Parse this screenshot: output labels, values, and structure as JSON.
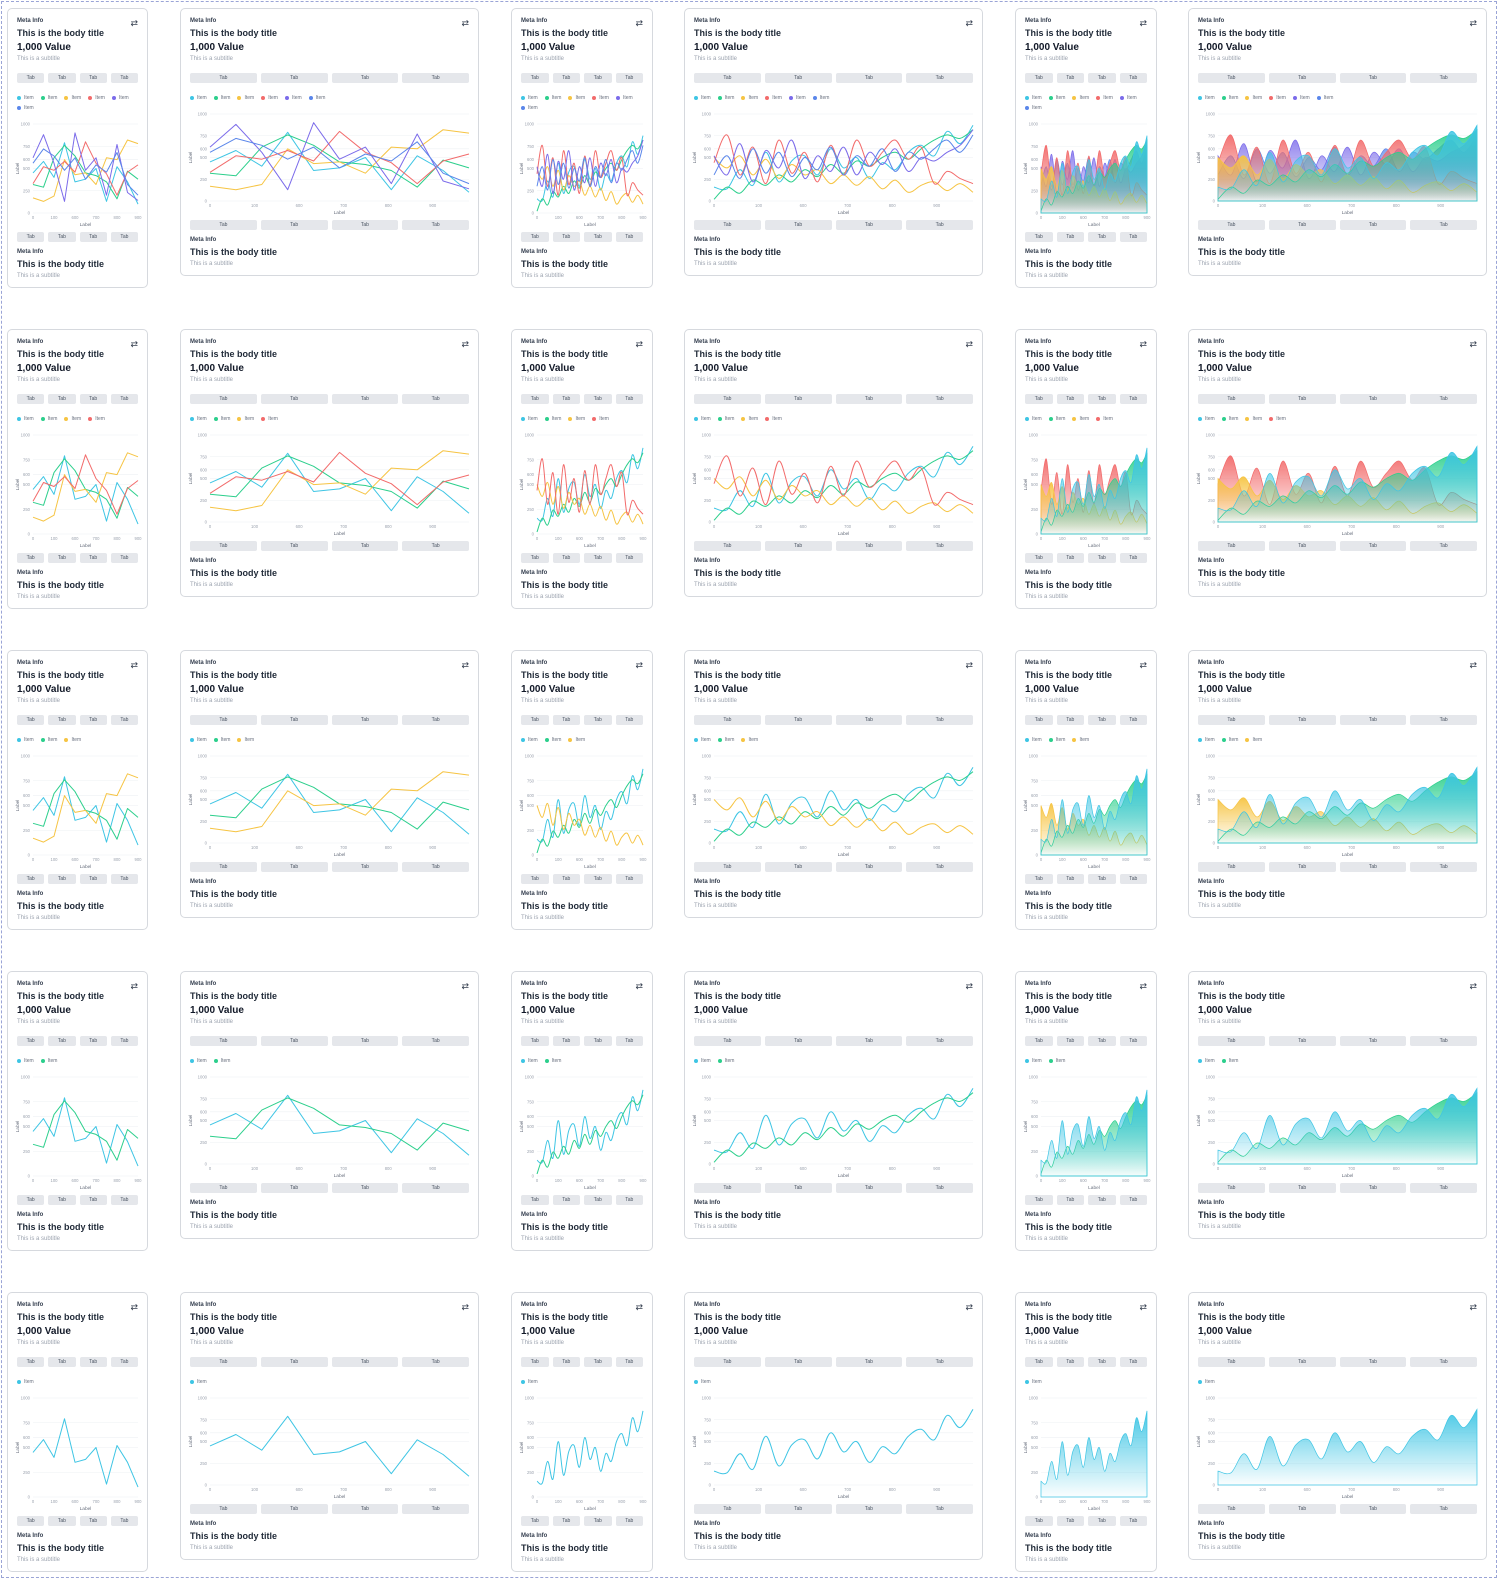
{
  "card_text": {
    "meta": "Meta Info",
    "title": "This is the body title",
    "value": "1,000 Value",
    "subtitle": "This is a subtitle",
    "tab_label": "Tab",
    "legend_label": "Item",
    "axis_label": "Label",
    "footer_meta": "Meta Info",
    "footer_title": "This is the body title",
    "footer_subtitle": "This is a subtitle"
  },
  "icons": {
    "refresh": "refresh-icon"
  },
  "colors": {
    "cyan": "#3ec5e4",
    "green": "#2ccf8c",
    "yellow": "#f6c443",
    "red": "#f26b6b",
    "purple": "#7b6bea",
    "blue": "#5a86ea",
    "grid": "#eef0f3",
    "axis_text": "#9ca3af"
  },
  "grid_layout": {
    "rows": 5,
    "columns_pattern": [
      "narrow-line",
      "wide-line",
      "narrow-spline",
      "wide-spline",
      "narrow-area",
      "wide-area"
    ],
    "series_per_row": [
      6,
      4,
      3,
      2,
      1
    ]
  },
  "chart_data": {
    "type": "line",
    "x_ticks_narrow": [
      0,
      100,
      600,
      700,
      800,
      900
    ],
    "x_ticks_wide": [
      0,
      100,
      600,
      700,
      800,
      900
    ],
    "y_ticks": [
      0,
      250,
      500,
      600,
      750,
      1000
    ],
    "ylim": [
      0,
      1000
    ],
    "xlabel": "Label",
    "ylabel": "Label",
    "series_order": [
      "cyan",
      "green",
      "yellow",
      "red",
      "purple",
      "blue"
    ],
    "line_series": {
      "cyan": [
        450,
        580,
        400,
        790,
        350,
        380,
        500,
        130,
        520,
        350,
        100
      ],
      "green": [
        320,
        290,
        620,
        760,
        640,
        450,
        420,
        350,
        160,
        470,
        380
      ],
      "yellow": [
        170,
        130,
        190,
        600,
        430,
        450,
        320,
        620,
        600,
        820,
        780
      ],
      "red": [
        330,
        520,
        480,
        580,
        460,
        800,
        560,
        440,
        200,
        460,
        540
      ],
      "purple": [
        620,
        880,
        560,
        130,
        900,
        480,
        620,
        200,
        770,
        230,
        140
      ],
      "blue": [
        560,
        720,
        640,
        480,
        620,
        380,
        540,
        460,
        680,
        320,
        200
      ]
    },
    "spline_series": {
      "cyan": [
        160,
        140,
        360,
        180,
        560,
        220,
        460,
        520,
        300,
        600,
        380,
        500,
        260,
        440,
        360,
        560,
        640,
        520,
        800,
        660,
        870
      ],
      "green": [
        20,
        160,
        90,
        240,
        180,
        300,
        220,
        360,
        280,
        420,
        320,
        460,
        400,
        500,
        560,
        480,
        600,
        700,
        760,
        720,
        820
      ],
      "yellow": [
        500,
        380,
        520,
        300,
        480,
        260,
        420,
        300,
        360,
        200,
        300,
        180,
        280,
        140,
        240,
        100,
        180,
        220,
        120,
        200,
        100
      ],
      "red": [
        440,
        760,
        300,
        620,
        200,
        700,
        320,
        560,
        220,
        640,
        300,
        700,
        400,
        560,
        700,
        480,
        620,
        200,
        340,
        260,
        200
      ],
      "purple": [
        520,
        300,
        660,
        220,
        580,
        380,
        700,
        260,
        520,
        340,
        620,
        300,
        560,
        420,
        600,
        340,
        500,
        460,
        560,
        640,
        820
      ],
      "blue": [
        300,
        520,
        260,
        600,
        320,
        560,
        280,
        500,
        360,
        620,
        300,
        520,
        400,
        600,
        340,
        560,
        480,
        600,
        700,
        560,
        760
      ]
    }
  }
}
